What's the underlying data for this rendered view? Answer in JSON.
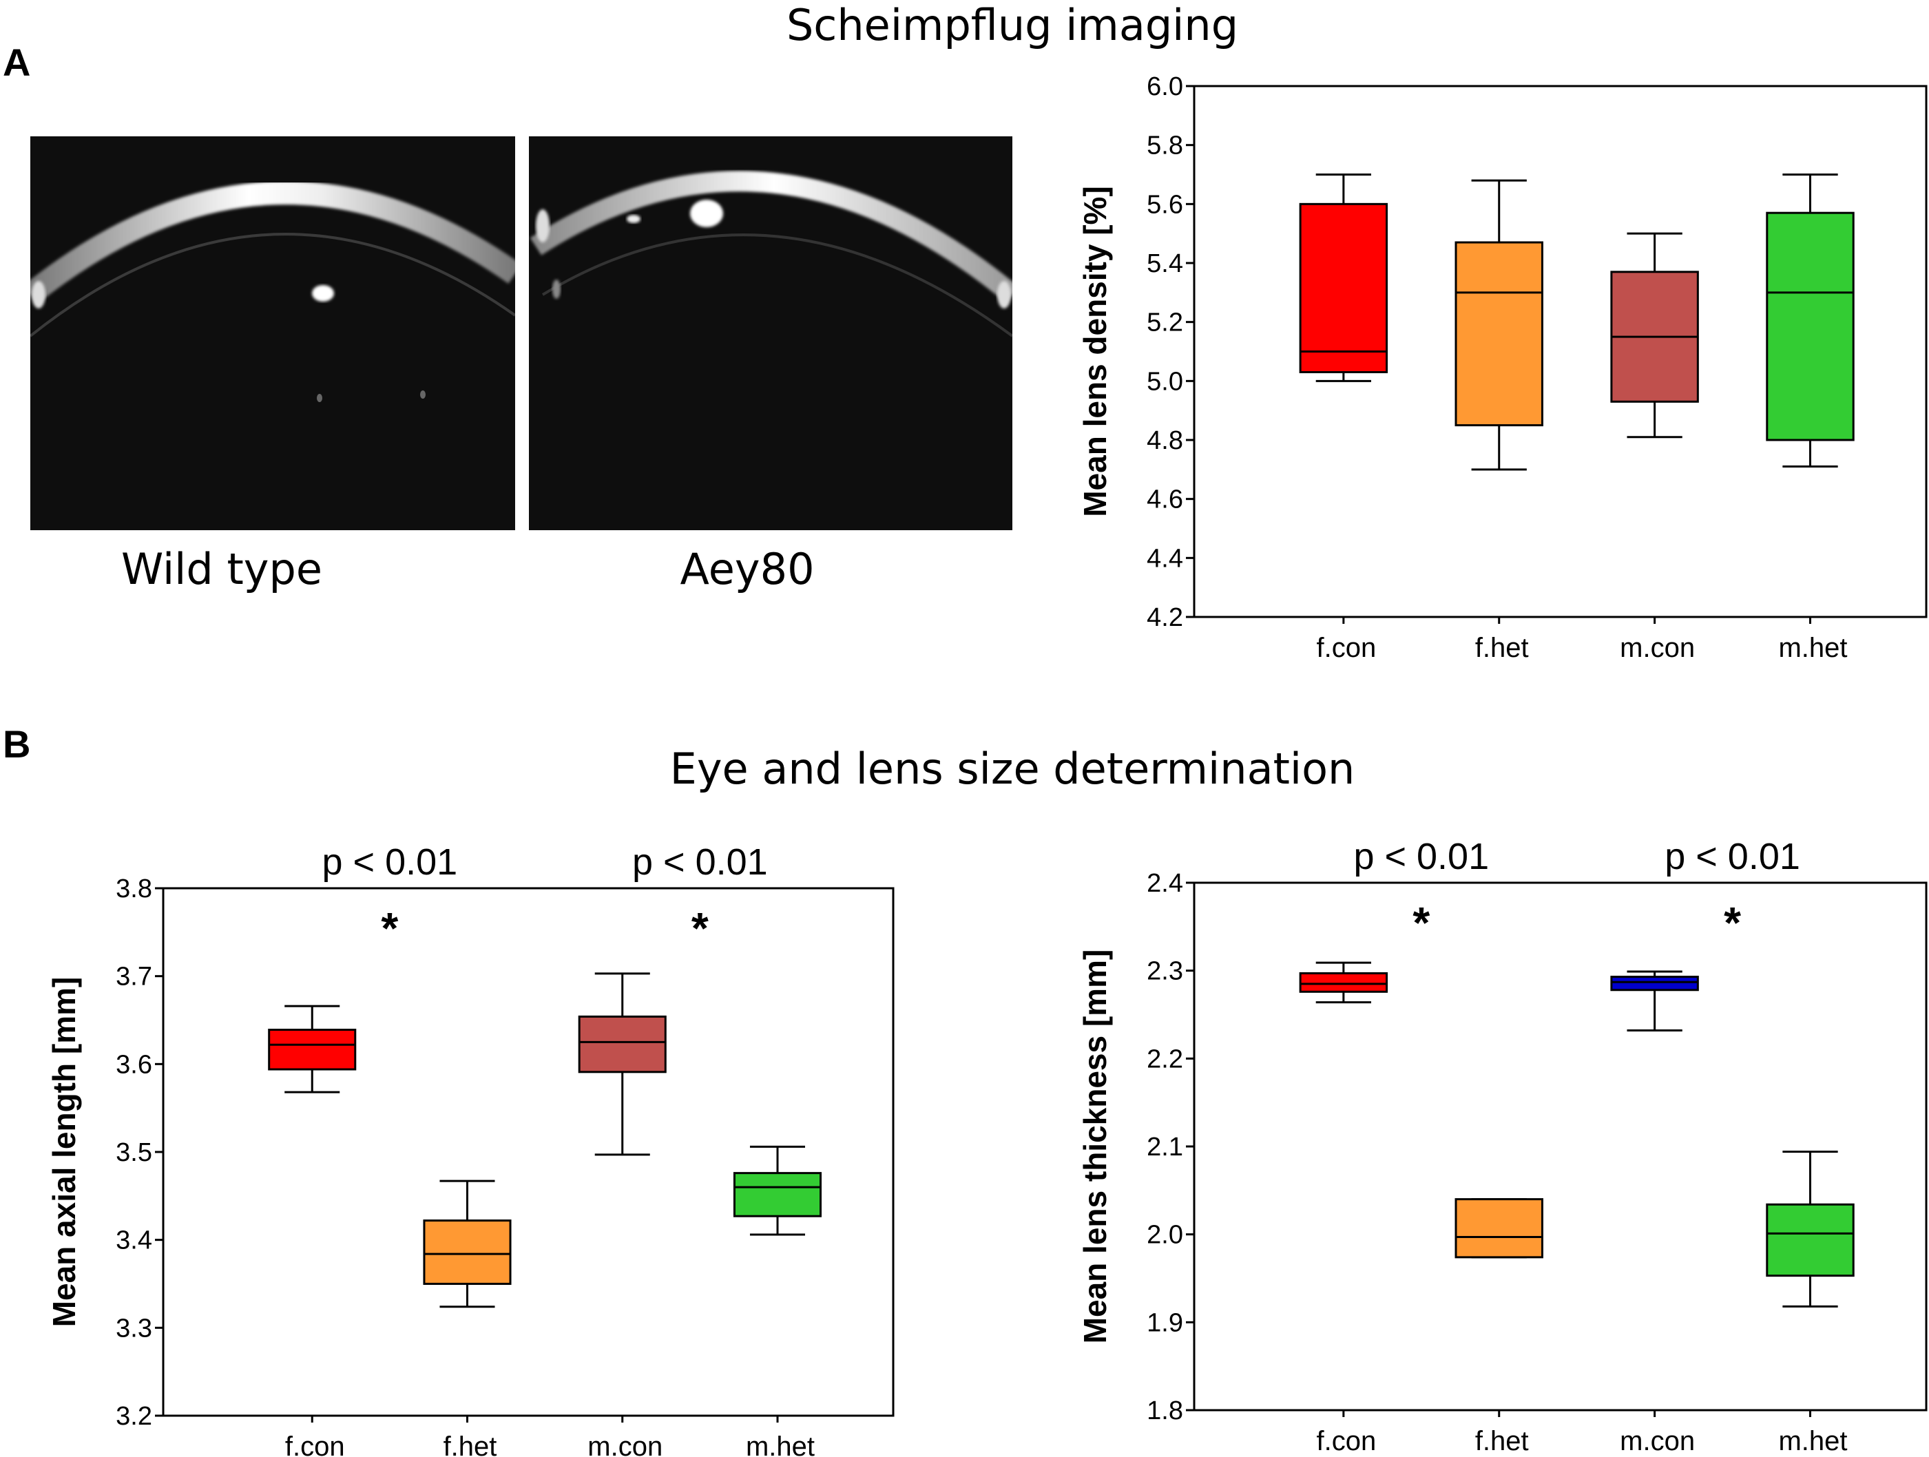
{
  "panel_a": {
    "label": "A",
    "title": "Scheimpflug imaging",
    "images": [
      {
        "caption": "Wild type"
      },
      {
        "caption": "Aey80"
      }
    ]
  },
  "panel_b": {
    "label": "B",
    "title": "Eye and lens size determination"
  },
  "colors": {
    "f.con": "#ff0000",
    "f.het": "#ff9933",
    "m.con_density_axial": "#c0504d",
    "m.con_thickness": "#0000cc",
    "m.het": "#33cc33"
  },
  "chart_data": [
    {
      "id": "density",
      "type": "box",
      "title": "",
      "xlabel": "",
      "ylabel": "Mean lens density [%]",
      "ylim": [
        4.2,
        6.0
      ],
      "yticks": [
        "4.2",
        "4.4",
        "4.6",
        "4.8",
        "5.0",
        "5.2",
        "5.4",
        "5.6",
        "5.8",
        "6.0"
      ],
      "categories": [
        "f.con",
        "f.het",
        "m.con",
        "m.het"
      ],
      "boxes": [
        {
          "category": "f.con",
          "min": 5.0,
          "q1": 5.03,
          "median": 5.1,
          "q3": 5.6,
          "max": 5.7,
          "color": "#ff0000"
        },
        {
          "category": "f.het",
          "min": 4.7,
          "q1": 4.85,
          "median": 5.3,
          "q3": 5.47,
          "max": 5.68,
          "color": "#ff9933"
        },
        {
          "category": "m.con",
          "min": 4.81,
          "q1": 4.93,
          "median": 5.15,
          "q3": 5.37,
          "max": 5.5,
          "color": "#c0504d"
        },
        {
          "category": "m.het",
          "min": 4.71,
          "q1": 4.8,
          "median": 5.3,
          "q3": 5.57,
          "max": 5.7,
          "color": "#33cc33"
        }
      ],
      "annotations": []
    },
    {
      "id": "axial",
      "type": "box",
      "title": "",
      "xlabel": "",
      "ylabel": "Mean axial length [mm]",
      "ylim": [
        3.2,
        3.8
      ],
      "yticks": [
        "3.2",
        "3.3",
        "3.4",
        "3.5",
        "3.6",
        "3.7",
        "3.8"
      ],
      "categories": [
        "f.con",
        "f.het",
        "m.con",
        "m.het"
      ],
      "boxes": [
        {
          "category": "f.con",
          "min": 3.568,
          "q1": 3.594,
          "median": 3.622,
          "q3": 3.639,
          "max": 3.666,
          "color": "#ff0000"
        },
        {
          "category": "f.het",
          "min": 3.324,
          "q1": 3.35,
          "median": 3.384,
          "q3": 3.422,
          "max": 3.467,
          "color": "#ff9933"
        },
        {
          "category": "m.con",
          "min": 3.497,
          "q1": 3.591,
          "median": 3.625,
          "q3": 3.654,
          "max": 3.703,
          "color": "#c0504d"
        },
        {
          "category": "m.het",
          "min": 3.406,
          "q1": 3.427,
          "median": 3.46,
          "q3": 3.476,
          "max": 3.506,
          "color": "#33cc33"
        }
      ],
      "annotations": [
        {
          "text": "p < 0.01",
          "star": "*",
          "between": [
            "f.con",
            "f.het"
          ]
        },
        {
          "text": "p < 0.01",
          "star": "*",
          "between": [
            "m.con",
            "m.het"
          ]
        }
      ]
    },
    {
      "id": "thickness",
      "type": "box",
      "title": "",
      "xlabel": "",
      "ylabel": "Mean lens thickness [mm]",
      "ylim": [
        1.8,
        2.4
      ],
      "yticks": [
        "1.8",
        "1.9",
        "2.0",
        "2.1",
        "2.2",
        "2.3",
        "2.4"
      ],
      "categories": [
        "f.con",
        "f.het",
        "m.con",
        "m.het"
      ],
      "boxes": [
        {
          "category": "f.con",
          "min": 2.264,
          "q1": 2.276,
          "median": 2.285,
          "q3": 2.297,
          "max": 2.309,
          "color": "#ff0000"
        },
        {
          "category": "f.het",
          "min": 1.974,
          "q1": 1.974,
          "median": 1.997,
          "q3": 2.04,
          "max": 2.04,
          "color": "#ff9933"
        },
        {
          "category": "m.con",
          "min": 2.232,
          "q1": 2.278,
          "median": 2.287,
          "q3": 2.293,
          "max": 2.299,
          "color": "#0000cc"
        },
        {
          "category": "m.het",
          "min": 1.918,
          "q1": 1.953,
          "median": 2.001,
          "q3": 2.034,
          "max": 2.094,
          "color": "#33cc33"
        }
      ],
      "annotations": [
        {
          "text": "p < 0.01",
          "star": "*",
          "between": [
            "f.con",
            "f.het"
          ]
        },
        {
          "text": "p < 0.01",
          "star": "*",
          "between": [
            "m.con",
            "m.het"
          ]
        }
      ]
    }
  ]
}
